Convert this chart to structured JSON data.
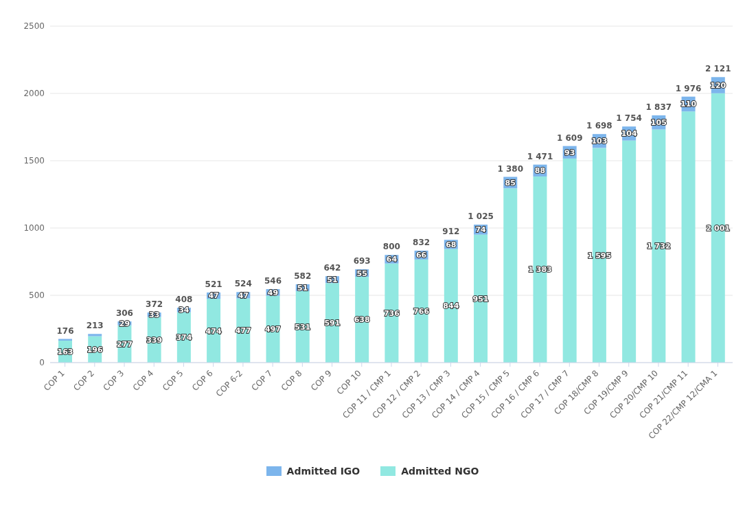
{
  "chart_data": {
    "type": "bar",
    "stacked": true,
    "categories": [
      "COP 1",
      "COP 2",
      "COP 3",
      "COP 4",
      "COP 5",
      "COP 6",
      "COP 6-2",
      "COP 7",
      "COP 8",
      "COP 9",
      "COP 10",
      "COP 11 / CMP 1",
      "COP 12 / CMP 2",
      "COP 13 / CMP 3",
      "COP 14 / CMP 4",
      "COP 15 / CMP 5",
      "COP 16 / CMP 6",
      "COP 17 / CMP 7",
      "COP 18/CMP 8",
      "COP 19/CMP 9",
      "COP 20/CMP 10",
      "COP 21/CMP 11",
      "COP 22/CMP 12/CMA 1"
    ],
    "series": [
      {
        "name": "Admitted NGO",
        "color": "#91e8e1",
        "values": [
          163,
          196,
          277,
          339,
          374,
          474,
          477,
          497,
          531,
          591,
          638,
          736,
          766,
          844,
          951,
          1295,
          1383,
          1516,
          1595,
          1650,
          1732,
          1866,
          2001
        ],
        "value_labels": [
          "163",
          "196",
          "277",
          "339",
          "374",
          "474",
          "477",
          "497",
          "531",
          "591",
          "638",
          "736",
          "766",
          "844",
          "951",
          null,
          "1 383",
          null,
          "1 595",
          null,
          "1 732",
          null,
          "2 001"
        ]
      },
      {
        "name": "Admitted IGO",
        "color": "#7cb5ec",
        "values": [
          13,
          17,
          29,
          33,
          34,
          47,
          47,
          49,
          51,
          51,
          55,
          64,
          66,
          68,
          74,
          85,
          88,
          93,
          103,
          104,
          105,
          110,
          120
        ],
        "value_labels": [
          null,
          null,
          "29",
          "33",
          "34",
          "47",
          "47",
          "49",
          "51",
          "51",
          "55",
          "64",
          "66",
          "68",
          "74",
          "85",
          "88",
          "93",
          "103",
          "104",
          "105",
          "110",
          "120"
        ]
      }
    ],
    "totals": [
      "176",
      "213",
      "306",
      "372",
      "408",
      "521",
      "524",
      "546",
      "582",
      "642",
      "693",
      "800",
      "832",
      "912",
      "1 025",
      "1 380",
      "1 471",
      "1 609",
      "1 698",
      "1 754",
      "1 837",
      "1 976",
      "2 121"
    ],
    "ylim": [
      0,
      2500
    ],
    "yticks": [
      0,
      500,
      1000,
      1500,
      2000,
      2500
    ],
    "grid": "y",
    "legend": "bottom"
  }
}
